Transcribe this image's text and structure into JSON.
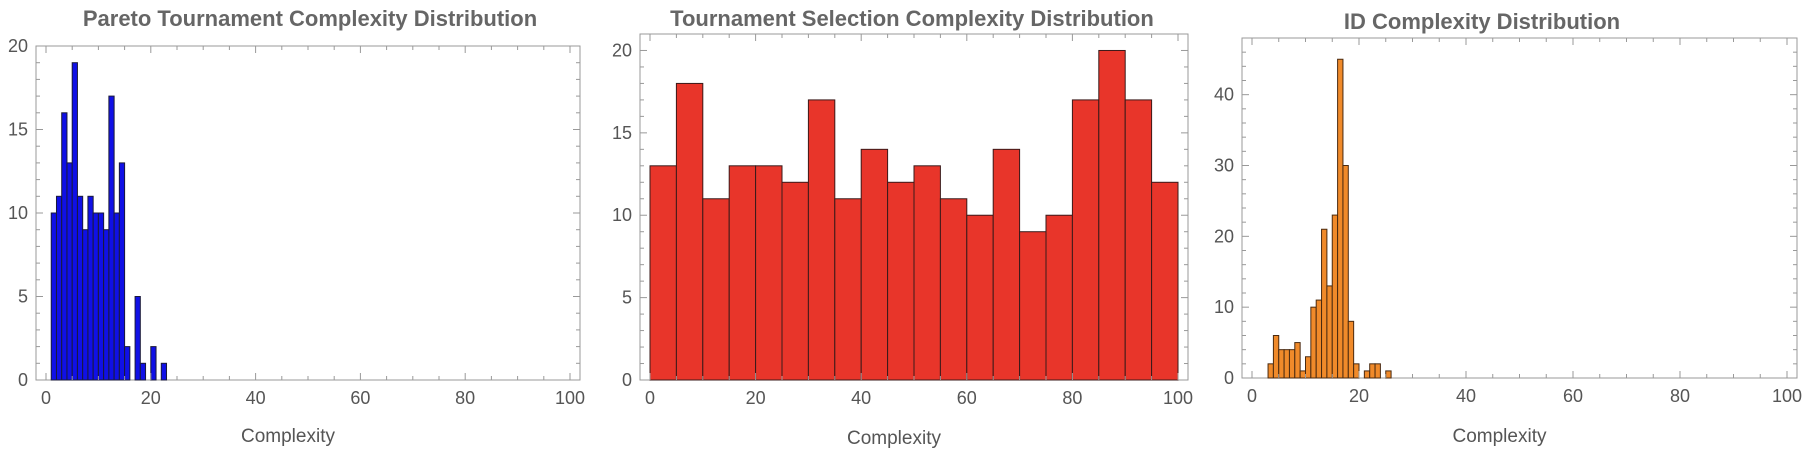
{
  "chart_data": [
    {
      "type": "bar",
      "title": "Pareto Tournament Complexity Distribution",
      "xlabel": "Complexity",
      "ylabel": "",
      "xlim": [
        0,
        100
      ],
      "ylim": [
        0,
        20
      ],
      "xticks": [
        0,
        20,
        40,
        60,
        80,
        100
      ],
      "yticks": [
        0,
        5,
        10,
        15,
        20
      ],
      "bin_width": 1,
      "fill": "#1010e6",
      "edge": "#1a1a3a",
      "bins": [
        {
          "x": 1,
          "y": 10
        },
        {
          "x": 2,
          "y": 11
        },
        {
          "x": 3,
          "y": 16
        },
        {
          "x": 4,
          "y": 13
        },
        {
          "x": 5,
          "y": 19
        },
        {
          "x": 6,
          "y": 11
        },
        {
          "x": 7,
          "y": 9
        },
        {
          "x": 8,
          "y": 11
        },
        {
          "x": 9,
          "y": 10
        },
        {
          "x": 10,
          "y": 10
        },
        {
          "x": 11,
          "y": 9
        },
        {
          "x": 12,
          "y": 17
        },
        {
          "x": 13,
          "y": 10
        },
        {
          "x": 14,
          "y": 13
        },
        {
          "x": 15,
          "y": 2
        },
        {
          "x": 17,
          "y": 5
        },
        {
          "x": 18,
          "y": 1
        },
        {
          "x": 19,
          "y": 0
        },
        {
          "x": 20,
          "y": 2
        },
        {
          "x": 21,
          "y": 0
        },
        {
          "x": 22,
          "y": 1
        }
      ]
    },
    {
      "type": "bar",
      "title": "Tournament Selection Complexity Distribution",
      "xlabel": "Complexity",
      "ylabel": "",
      "xlim": [
        0,
        100
      ],
      "ylim": [
        0,
        21
      ],
      "xticks": [
        0,
        20,
        40,
        60,
        80,
        100
      ],
      "yticks": [
        0,
        5,
        10,
        15,
        20
      ],
      "bin_width": 5,
      "fill": "#e8352a",
      "edge": "#3a1a1a",
      "bins": [
        {
          "x": 0,
          "y": 13
        },
        {
          "x": 5,
          "y": 18
        },
        {
          "x": 10,
          "y": 11
        },
        {
          "x": 15,
          "y": 13
        },
        {
          "x": 20,
          "y": 13
        },
        {
          "x": 25,
          "y": 12
        },
        {
          "x": 30,
          "y": 17
        },
        {
          "x": 35,
          "y": 11
        },
        {
          "x": 40,
          "y": 14
        },
        {
          "x": 45,
          "y": 12
        },
        {
          "x": 50,
          "y": 13
        },
        {
          "x": 55,
          "y": 11
        },
        {
          "x": 60,
          "y": 10
        },
        {
          "x": 65,
          "y": 14
        },
        {
          "x": 70,
          "y": 9
        },
        {
          "x": 75,
          "y": 10
        },
        {
          "x": 80,
          "y": 17
        },
        {
          "x": 85,
          "y": 20
        },
        {
          "x": 90,
          "y": 17
        },
        {
          "x": 95,
          "y": 12
        }
      ]
    },
    {
      "type": "bar",
      "title": "ID Complexity Distribution",
      "xlabel": "Complexity",
      "ylabel": "",
      "xlim": [
        0,
        100
      ],
      "ylim": [
        0,
        48
      ],
      "xticks": [
        0,
        20,
        40,
        60,
        80,
        100
      ],
      "yticks": [
        0,
        10,
        20,
        30,
        40
      ],
      "bin_width": 1,
      "fill": "#f08a2a",
      "edge": "#4a2a10",
      "bins": [
        {
          "x": 3,
          "y": 2
        },
        {
          "x": 4,
          "y": 6
        },
        {
          "x": 5,
          "y": 4
        },
        {
          "x": 6,
          "y": 4
        },
        {
          "x": 7,
          "y": 4
        },
        {
          "x": 8,
          "y": 5
        },
        {
          "x": 9,
          "y": 1
        },
        {
          "x": 10,
          "y": 3
        },
        {
          "x": 11,
          "y": 10
        },
        {
          "x": 12,
          "y": 11
        },
        {
          "x": 13,
          "y": 21
        },
        {
          "x": 14,
          "y": 13
        },
        {
          "x": 15,
          "y": 23
        },
        {
          "x": 16,
          "y": 45
        },
        {
          "x": 17,
          "y": 30
        },
        {
          "x": 18,
          "y": 8
        },
        {
          "x": 19,
          "y": 2
        },
        {
          "x": 20,
          "y": 0
        },
        {
          "x": 21,
          "y": 1
        },
        {
          "x": 22,
          "y": 2
        },
        {
          "x": 23,
          "y": 2
        },
        {
          "x": 24,
          "y": 0
        },
        {
          "x": 25,
          "y": 1
        }
      ]
    }
  ]
}
